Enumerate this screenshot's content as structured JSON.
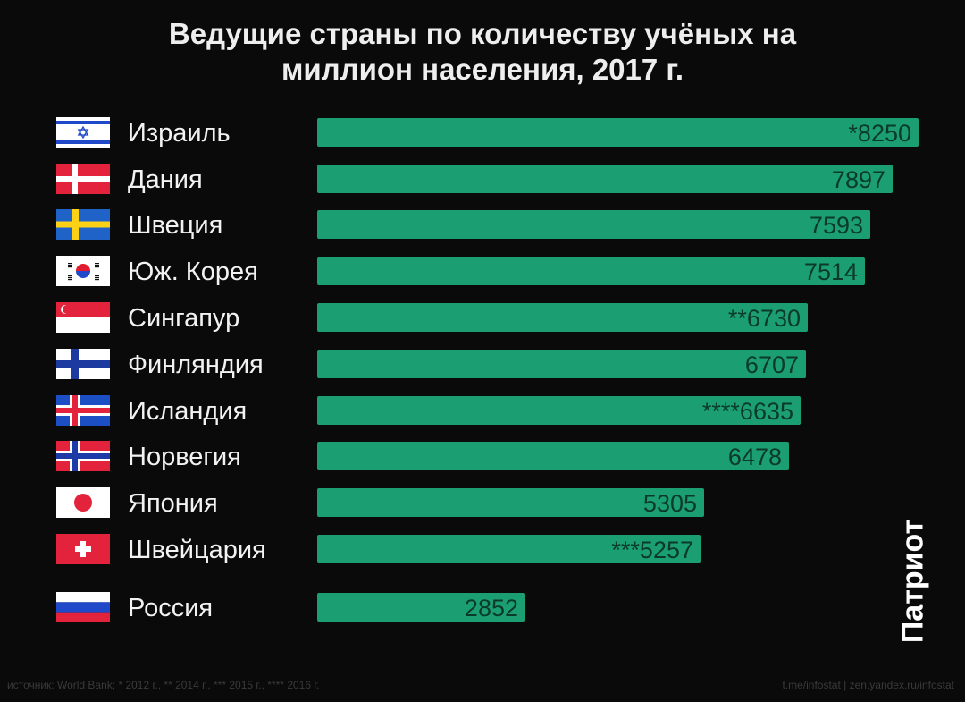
{
  "chart_data": {
    "type": "bar",
    "orientation": "horizontal",
    "title_line1": "Ведущие страны по количеству учёных на",
    "title_line2": "миллион населения, 2017 г.",
    "categories": [
      "Израиль",
      "Дания",
      "Швеция",
      "Юж. Корея",
      "Сингапур",
      "Финляндия",
      "Исландия",
      "Норвегия",
      "Япония",
      "Швейцария",
      "Россия"
    ],
    "values": [
      8250,
      7897,
      7593,
      7514,
      6730,
      6707,
      6635,
      6478,
      5305,
      5257,
      2852
    ],
    "value_labels": [
      "*8250",
      "7897",
      "7593",
      "7514",
      "**6730",
      "6707",
      "****6635",
      "6478",
      "5305",
      "***5257",
      "2852"
    ],
    "flags": [
      "israel-flag",
      "denmark-flag",
      "sweden-flag",
      "south-korea-flag",
      "singapore-flag",
      "finland-flag",
      "iceland-flag",
      "norway-flag",
      "japan-flag",
      "switzerland-flag",
      "russia-flag"
    ],
    "bar_color": "#1b9f72",
    "label_color": "#0b3a2a",
    "xlim": [
      0,
      8250
    ],
    "grid": false,
    "legend": "none"
  },
  "watermark": "Патриот",
  "footer": {
    "source": "источник: World Bank; * 2012 г., ** 2014 г., *** 2015 г., **** 2016 г.",
    "links": "t.me/infostat | zen.yandex.ru/infostat"
  }
}
